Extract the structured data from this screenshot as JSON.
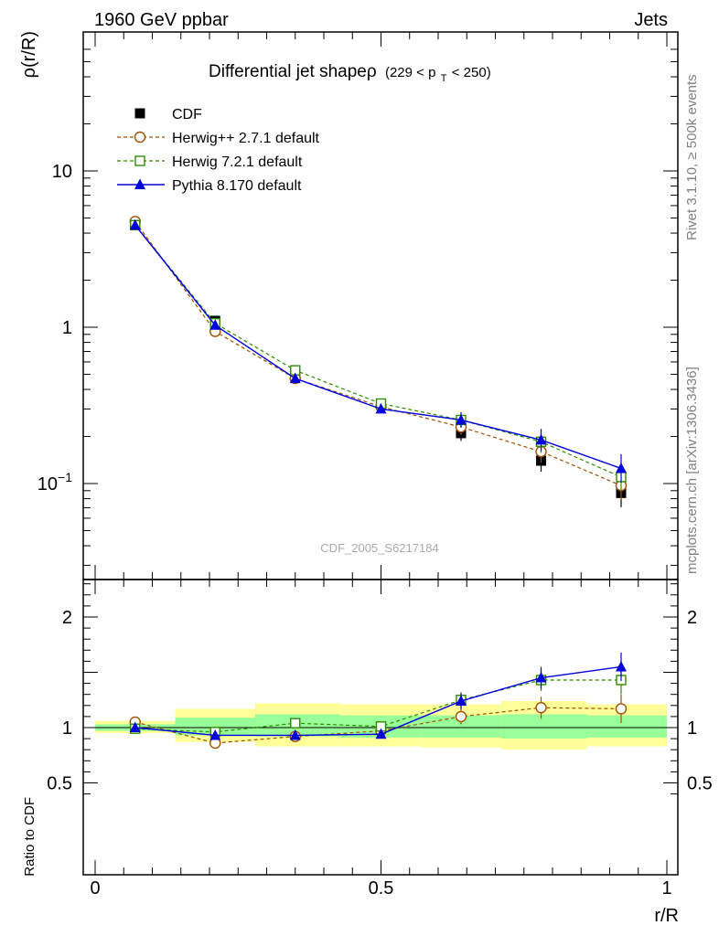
{
  "header": {
    "left": "1960 GeV ppbar",
    "right": "Jets"
  },
  "side": {
    "rivet": "Rivet 3.1.10, ≥ 500k events",
    "mcplots": "mcplots.cern.ch [arXiv:1306.3436]"
  },
  "title": {
    "main": "Differential jet shapeρ",
    "sub_prefix": "(229 < p",
    "sub_index": "T",
    "sub_suffix": " < 250)"
  },
  "watermark": "CDF_2005_S6217184",
  "colors": {
    "data": "#000000",
    "herwigpp": "#a05000",
    "herwig7": "#2e8b00",
    "pythia": "#0000dd",
    "band_outer": "#ffff99",
    "band_inner": "#99ff99"
  },
  "chart_data": [
    {
      "type": "line",
      "panel": "main",
      "ylabel": "ρ(r/R)",
      "yscale": "log",
      "ylim": [
        0.026,
        60
      ],
      "xlim": [
        -0.02,
        1.02
      ],
      "y_ticks": [
        {
          "value": 0.1,
          "label": "10",
          "exp": "−1"
        },
        {
          "value": 1,
          "label": "1",
          "exp": ""
        },
        {
          "value": 10,
          "label": "10",
          "exp": ""
        }
      ],
      "x": [
        0.07,
        0.21,
        0.35,
        0.5,
        0.64,
        0.78,
        0.92
      ],
      "series": [
        {
          "name": "CDF",
          "key": "data",
          "marker": "square-filled",
          "line": "none",
          "values": [
            4.5,
            1.1,
            0.5,
            0.32,
            0.21,
            0.14,
            0.087
          ]
        },
        {
          "name": "Herwig++ 2.7.1 default",
          "key": "herwigpp",
          "marker": "circle-open",
          "line": "dashed",
          "values": [
            4.75,
            0.94,
            0.47,
            0.31,
            0.23,
            0.16,
            0.097
          ]
        },
        {
          "name": "Herwig 7.2.1 default",
          "key": "herwig7",
          "marker": "square-open",
          "line": "dashed",
          "values": [
            4.5,
            1.06,
            0.53,
            0.325,
            0.255,
            0.185,
            0.11
          ]
        },
        {
          "name": "Pythia 8.170 default",
          "key": "pythia",
          "marker": "triangle-filled",
          "line": "solid",
          "values": [
            4.5,
            1.03,
            0.47,
            0.3,
            0.255,
            0.19,
            0.125
          ]
        }
      ]
    },
    {
      "type": "line",
      "panel": "ratio",
      "xlabel": "r/R",
      "ylabel": "Ratio to CDF",
      "ylim": [
        0.4,
        2.4
      ],
      "xlim": [
        -0.02,
        1.02
      ],
      "y_ticks": [
        0.5,
        1,
        2
      ],
      "x_ticks": [
        {
          "value": 0,
          "label": "0"
        },
        {
          "value": 0.5,
          "label": "0.5"
        },
        {
          "value": 1,
          "label": "1"
        }
      ],
      "x": [
        0.07,
        0.21,
        0.35,
        0.5,
        0.64,
        0.78,
        0.92
      ],
      "bin_edges": [
        0,
        0.14,
        0.28,
        0.43,
        0.57,
        0.71,
        0.86,
        1.0
      ],
      "band_outer": [
        [
          0.95,
          1.06
        ],
        [
          0.87,
          1.17
        ],
        [
          0.83,
          1.22
        ],
        [
          0.83,
          1.21
        ],
        [
          0.82,
          1.21
        ],
        [
          0.8,
          1.24
        ],
        [
          0.83,
          1.21
        ]
      ],
      "band_inner": [
        [
          0.97,
          1.03
        ],
        [
          0.93,
          1.09
        ],
        [
          0.92,
          1.12
        ],
        [
          0.91,
          1.11
        ],
        [
          0.91,
          1.11
        ],
        [
          0.9,
          1.12
        ],
        [
          0.91,
          1.11
        ]
      ],
      "series": [
        {
          "name": "Herwig++ 2.7.1 default",
          "key": "herwigpp",
          "marker": "circle-open",
          "line": "dashed",
          "values": [
            1.05,
            0.86,
            0.92,
            0.97,
            1.1,
            1.18,
            1.17
          ]
        },
        {
          "name": "Herwig 7.2.1 default",
          "key": "herwig7",
          "marker": "square-open",
          "line": "dashed",
          "values": [
            0.99,
            0.96,
            1.04,
            1.01,
            1.25,
            1.43,
            1.43
          ]
        },
        {
          "name": "Pythia 8.170 default",
          "key": "pythia",
          "marker": "triangle-filled",
          "line": "solid",
          "values": [
            1.0,
            0.93,
            0.93,
            0.94,
            1.24,
            1.45,
            1.55
          ]
        }
      ]
    }
  ]
}
